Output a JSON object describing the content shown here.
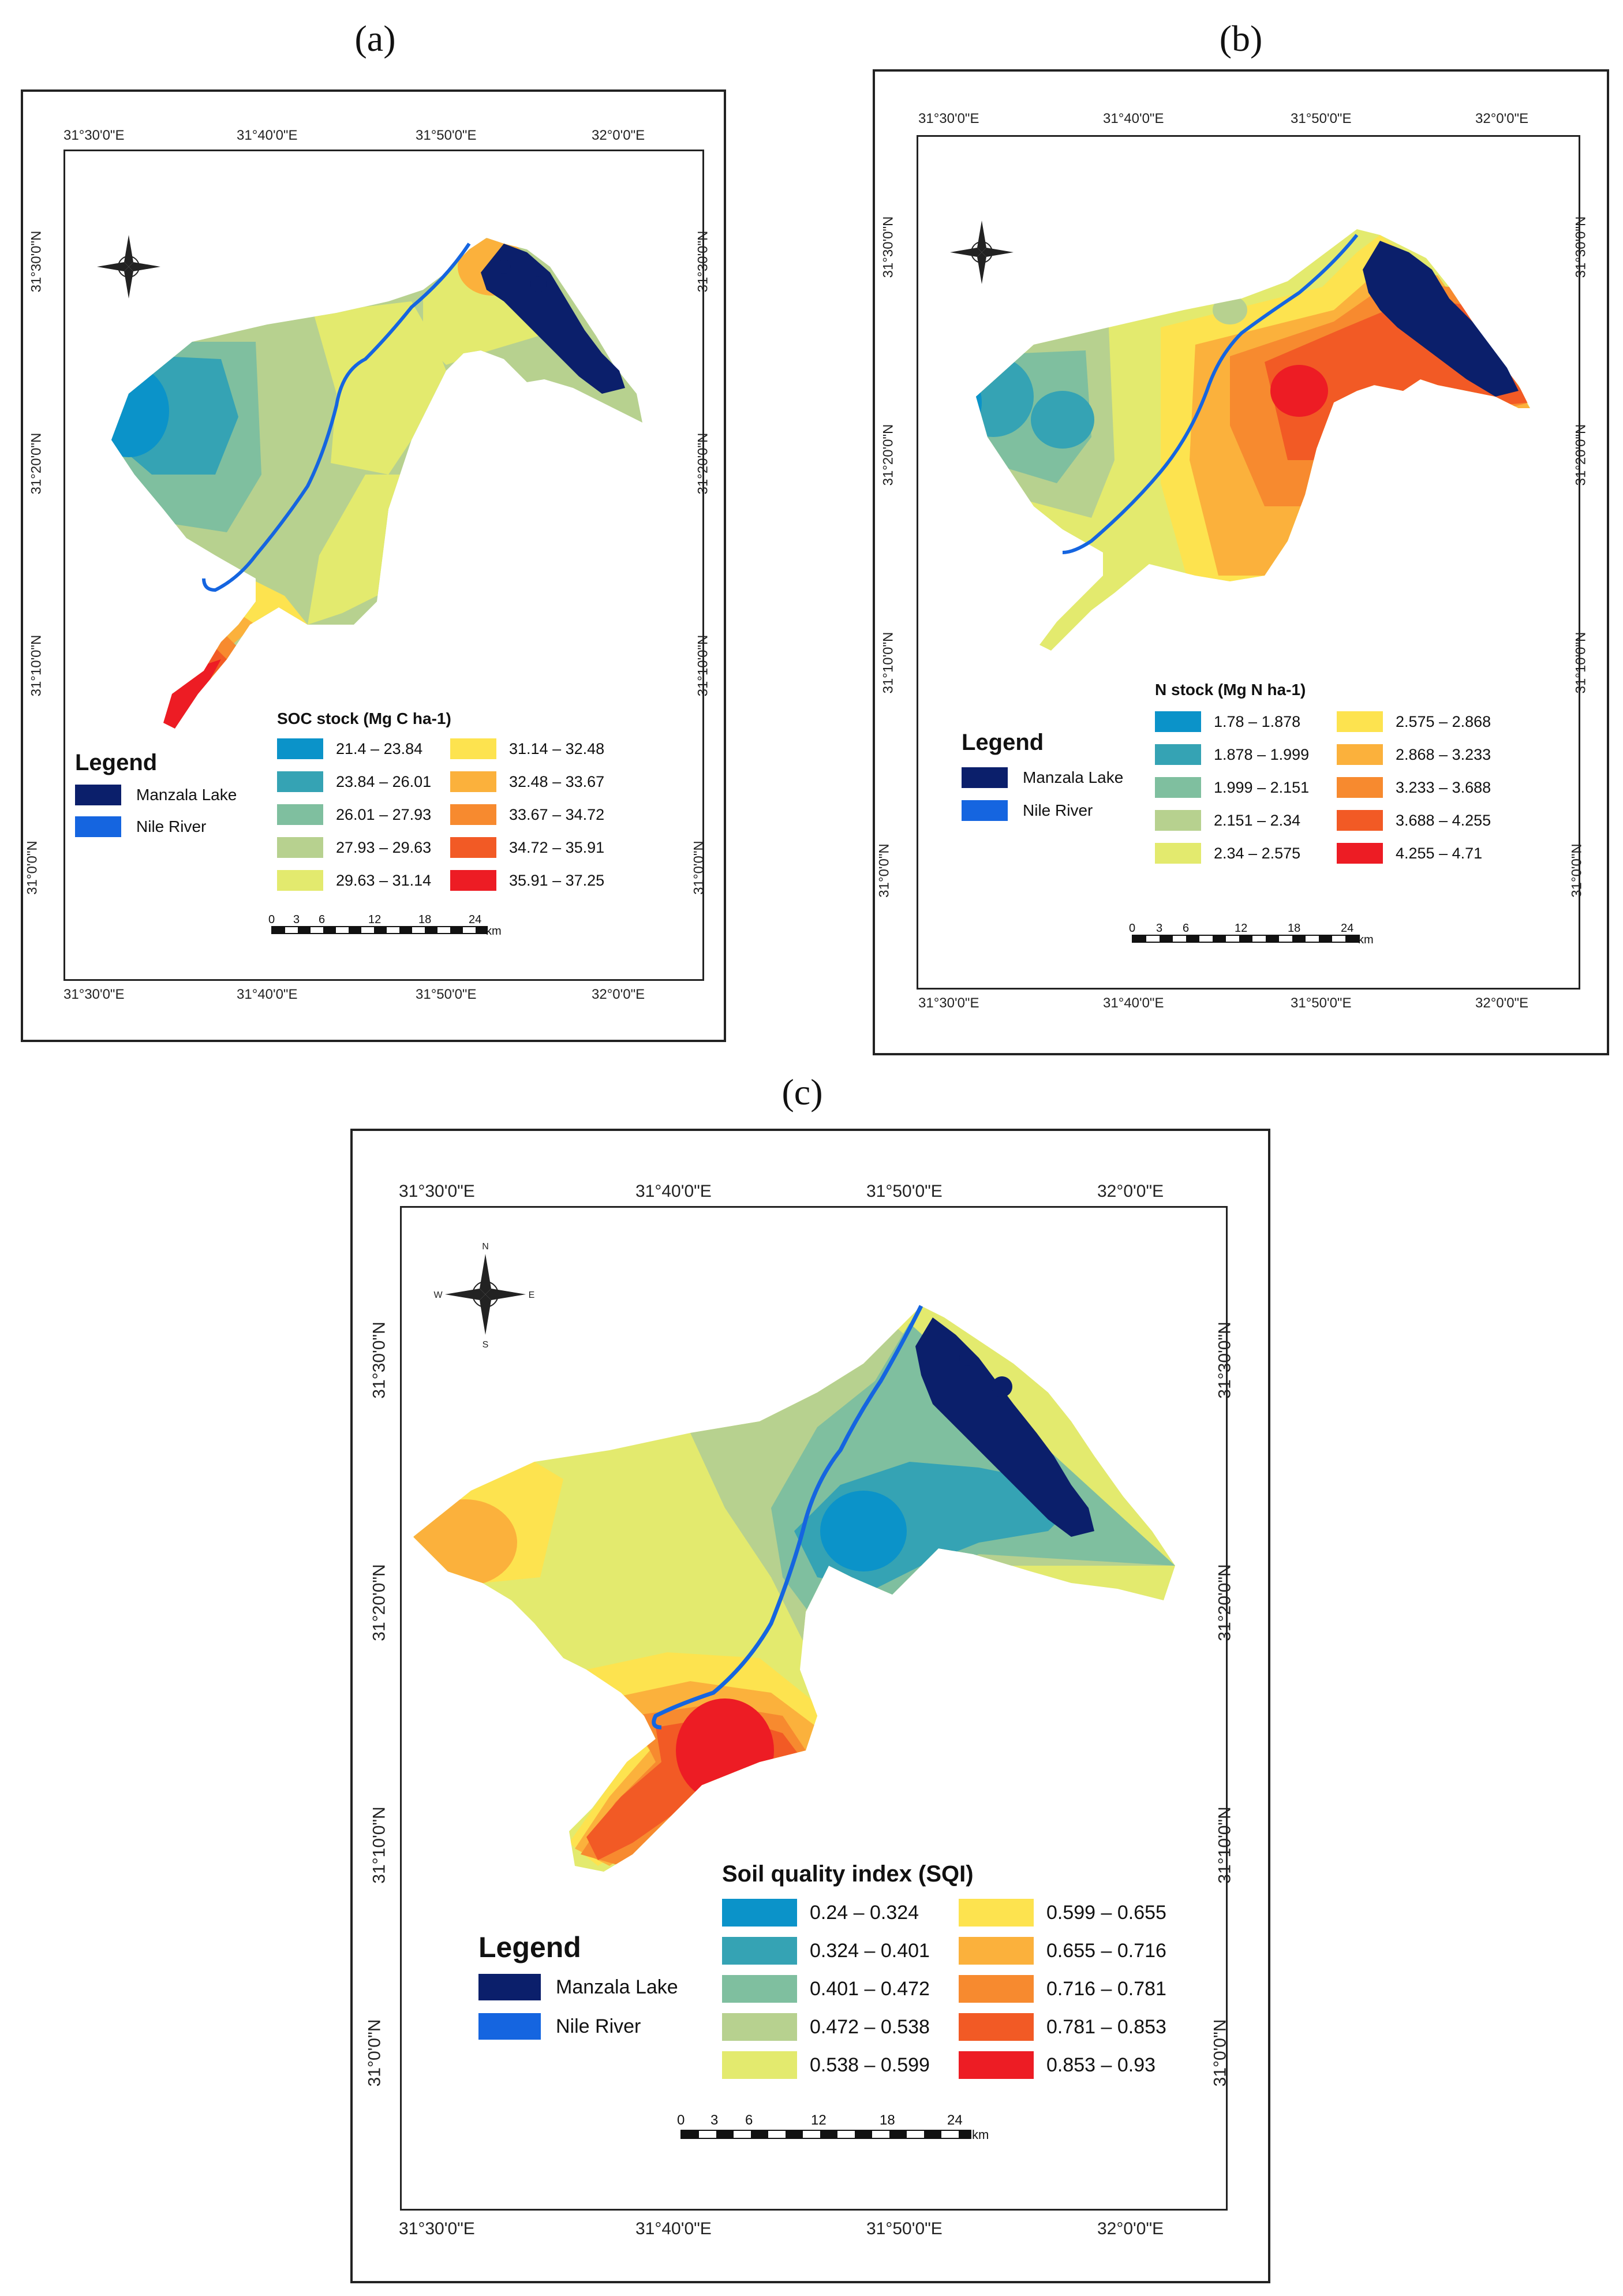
{
  "panels": {
    "a": {
      "label": "(a)",
      "title": "SOC stock (Mg C ha-1)",
      "top_lon": [
        "31°30'0\"E",
        "31°40'0\"E",
        "31°50'0\"E",
        "32°0'0\"E"
      ],
      "bottom_lon": [
        "31°30'0\"E",
        "31°40'0\"E",
        "31°50'0\"E",
        "32°0'0\"E"
      ],
      "lat": [
        "31°30'0\"N",
        "31°20'0\"N",
        "31°10'0\"N",
        "31°0'0\"N"
      ],
      "legend": {
        "title": "Legend",
        "lake": "Manzala Lake",
        "river": "Nile River"
      },
      "classes": [
        "21.4 – 23.84",
        "23.84 – 26.01",
        "26.01 – 27.93",
        "27.93 – 29.63",
        "29.63 – 31.14",
        "31.14 – 32.48",
        "32.48 – 33.67",
        "33.67 – 34.72",
        "34.72 – 35.91",
        "35.91 – 37.25"
      ],
      "scale": [
        "0",
        "3",
        "6",
        "12",
        "18",
        "24",
        "km"
      ]
    },
    "b": {
      "label": "(b)",
      "title": "N stock (Mg N ha-1)",
      "top_lon": [
        "31°30'0\"E",
        "31°40'0\"E",
        "31°50'0\"E",
        "32°0'0\"E"
      ],
      "bottom_lon": [
        "31°30'0\"E",
        "31°40'0\"E",
        "31°50'0\"E",
        "32°0'0\"E"
      ],
      "lat": [
        "31°30'0\"N",
        "31°20'0\"N",
        "31°10'0\"N",
        "31°0'0\"N"
      ],
      "legend": {
        "title": "Legend",
        "lake": "Manzala Lake",
        "river": "Nile River"
      },
      "classes": [
        "1.78 – 1.878",
        "1.878 – 1.999",
        "1.999 – 2.151",
        "2.151 – 2.34",
        "2.34 – 2.575",
        "2.575 – 2.868",
        "2.868 – 3.233",
        "3.233 – 3.688",
        "3.688 – 4.255",
        "4.255 – 4.71"
      ],
      "scale": [
        "0",
        "3",
        "6",
        "12",
        "18",
        "24",
        "km"
      ]
    },
    "c": {
      "label": "(c)",
      "title": "Soil quality index (SQI)",
      "top_lon": [
        "31°30'0\"E",
        "31°40'0\"E",
        "31°50'0\"E",
        "32°0'0\"E"
      ],
      "bottom_lon": [
        "31°30'0\"E",
        "31°40'0\"E",
        "31°50'0\"E",
        "32°0'0\"E"
      ],
      "lat": [
        "31°30'0\"N",
        "31°20'0\"N",
        "31°10'0\"N",
        "31°0'0\"N"
      ],
      "legend": {
        "title": "Legend",
        "lake": "Manzala Lake",
        "river": "Nile River"
      },
      "classes": [
        "0.24 – 0.324",
        "0.324 – 0.401",
        "0.401 – 0.472",
        "0.472 – 0.538",
        "0.538 – 0.599",
        "0.599 – 0.655",
        "0.655 – 0.716",
        "0.716 – 0.781",
        "0.781 – 0.853",
        "0.853 – 0.93"
      ],
      "scale": [
        "0",
        "3",
        "6",
        "12",
        "18",
        "24",
        "km"
      ],
      "compass": [
        "N",
        "E",
        "S",
        "W"
      ]
    }
  },
  "colors": {
    "ramp": [
      "#0b93c9",
      "#35a3b4",
      "#7fbf9f",
      "#b7d18f",
      "#e3ea6e",
      "#fde34f",
      "#fbb13c",
      "#f78a2f",
      "#f25a25",
      "#ed1c24"
    ],
    "lake": "#0b1f6b",
    "river": "#1565e0"
  }
}
